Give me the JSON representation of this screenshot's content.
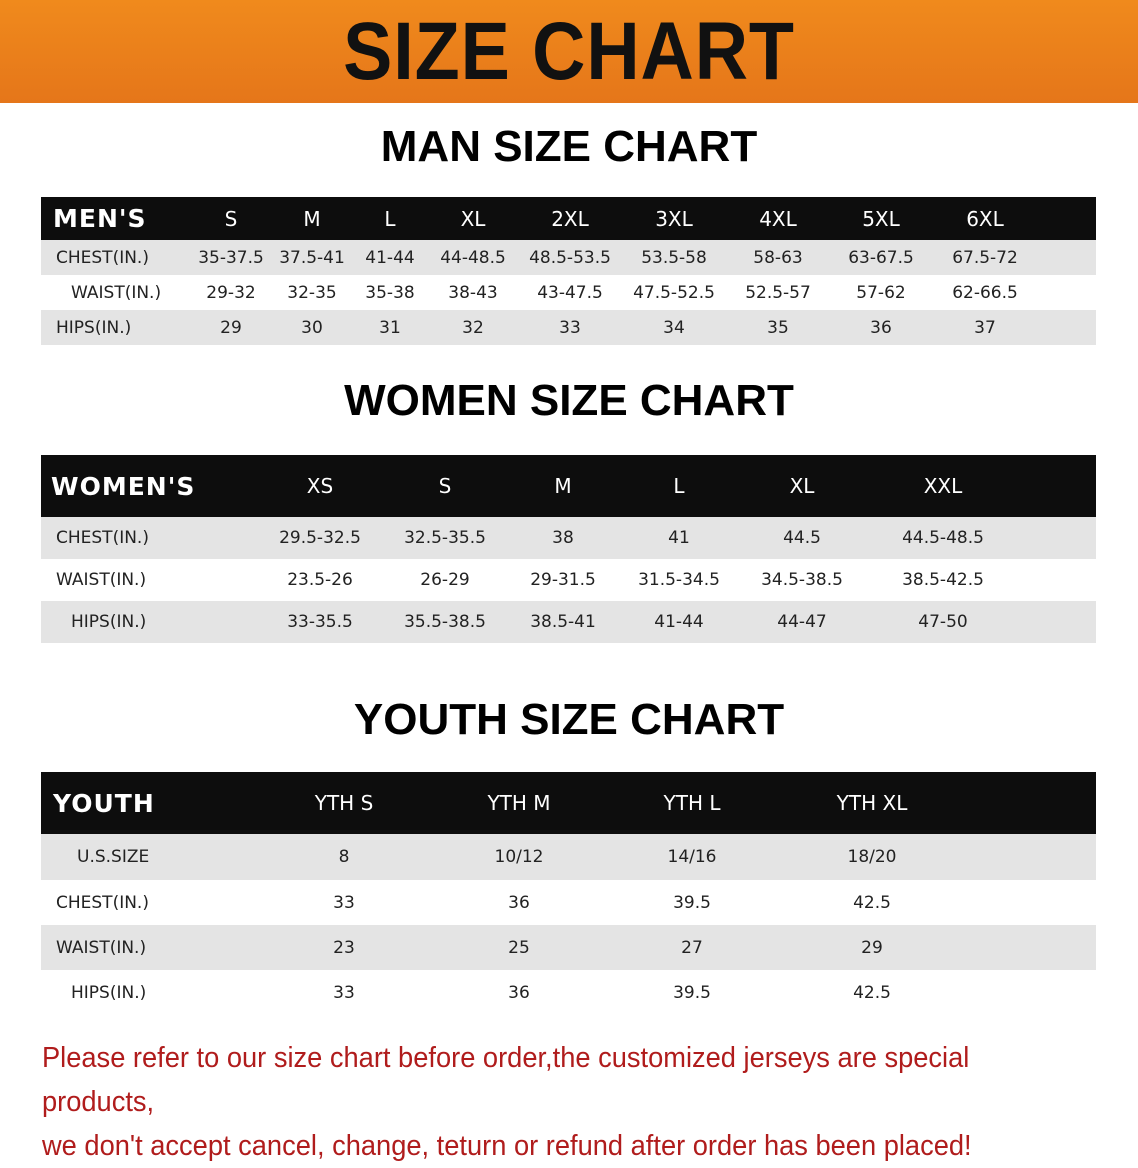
{
  "banner_title": "SIZE CHART",
  "colors": {
    "banner": "#ee8420",
    "header_row": "#0d0d0d",
    "stripe": "#e4e4e4",
    "note": "#b01c1c"
  },
  "men": {
    "title": "MAN SIZE CHART",
    "header": [
      "MEN'S",
      "S",
      "M",
      "L",
      "XL",
      "2XL",
      "3XL",
      "4XL",
      "5XL",
      "6XL"
    ],
    "rows": [
      [
        "CHEST(IN.)",
        "35-37.5",
        "37.5-41",
        "41-44",
        "44-48.5",
        "48.5-53.5",
        "53.5-58",
        "58-63",
        "63-67.5",
        "67.5-72"
      ],
      [
        "WAIST(IN.)",
        "29-32",
        "32-35",
        "35-38",
        "38-43",
        "43-47.5",
        "47.5-52.5",
        "52.5-57",
        "57-62",
        "62-66.5"
      ],
      [
        "HIPS(IN.)",
        "29",
        "30",
        "31",
        "32",
        "33",
        "34",
        "35",
        "36",
        "37"
      ]
    ]
  },
  "women": {
    "title": "WOMEN SIZE CHART",
    "header": [
      "WOMEN'S",
      "XS",
      "S",
      "M",
      "L",
      "XL",
      "XXL"
    ],
    "rows": [
      [
        "CHEST(IN.)",
        "29.5-32.5",
        "32.5-35.5",
        "38",
        "41",
        "44.5",
        "44.5-48.5"
      ],
      [
        "WAIST(IN.)",
        "23.5-26",
        "26-29",
        "29-31.5",
        "31.5-34.5",
        "34.5-38.5",
        "38.5-42.5"
      ],
      [
        "HIPS(IN.)",
        "33-35.5",
        "35.5-38.5",
        "38.5-41",
        "41-44",
        "44-47",
        "47-50"
      ]
    ]
  },
  "youth": {
    "title": "YOUTH SIZE CHART",
    "header": [
      "YOUTH",
      "YTH S",
      "YTH M",
      "YTH L",
      "YTH XL"
    ],
    "rows": [
      [
        "U.S.SIZE",
        "8",
        "10/12",
        "14/16",
        "18/20"
      ],
      [
        "CHEST(IN.)",
        "33",
        "36",
        "39.5",
        "42.5"
      ],
      [
        "WAIST(IN.)",
        "23",
        "25",
        "27",
        "29"
      ],
      [
        "HIPS(IN.)",
        "33",
        "36",
        "39.5",
        "42.5"
      ]
    ]
  },
  "note": {
    "line1": "Please refer to our size chart before order,the customized jerseys are special products,",
    "line2": "we don't accept cancel, change, teturn or refund after order has been placed!"
  }
}
